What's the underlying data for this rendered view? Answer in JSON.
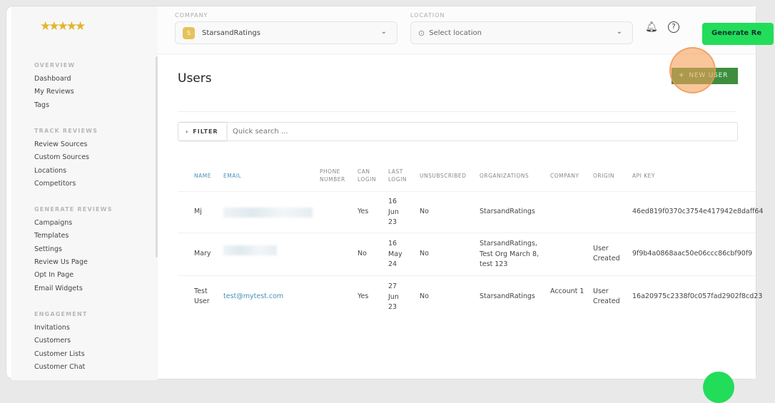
{
  "logo_alt": "StarsandRatings stars",
  "sidebar": {
    "sections": [
      {
        "title": "OVERVIEW",
        "items": [
          "Dashboard",
          "My Reviews",
          "Tags"
        ]
      },
      {
        "title": "TRACK REVIEWS",
        "items": [
          "Review Sources",
          "Custom Sources",
          "Locations",
          "Competitors"
        ]
      },
      {
        "title": "GENERATE REVIEWS",
        "items": [
          "Campaigns",
          "Templates",
          "Settings",
          "Review Us Page",
          "Opt In Page",
          "Email Widgets"
        ]
      },
      {
        "title": "ENGAGEMENT",
        "items": [
          "Invitations",
          "Customers",
          "Customer Lists",
          "Customer Chat"
        ]
      }
    ]
  },
  "header": {
    "company_label": "COMPANY",
    "company_initial": "S",
    "company_value": "StarsandRatings",
    "location_label": "LOCATION",
    "location_placeholder": "Select location",
    "generate_label": "Generate Re"
  },
  "page": {
    "title": "Users",
    "new_user": "NEW USER",
    "filter": "FILTER",
    "search_placeholder": "Quick search ..."
  },
  "table": {
    "columns": [
      "NAME",
      "EMAIL",
      "PHONE NUMBER",
      "CAN LOGIN",
      "LAST LOGIN",
      "UNSUBSCRIBED",
      "ORGANIZATIONS",
      "COMPANY",
      "ORIGIN",
      "API KEY"
    ],
    "rows": [
      {
        "name": "Mj",
        "email": "",
        "phone": "",
        "can_login": "Yes",
        "last_login": "16 Jun 23",
        "unsubscribed": "No",
        "organizations": "StarsandRatings",
        "company": "",
        "origin": "",
        "api_key": "46ed819f0370c3754e417942e8daff64"
      },
      {
        "name": "Mary",
        "email": "",
        "phone": "",
        "can_login": "No",
        "last_login": "16 May 24",
        "unsubscribed": "No",
        "organizations": "StarsandRatings, Test Org March 8, test 123",
        "company": "",
        "origin": "User Created",
        "api_key": "9f9b4a0868aac50e06ccc86cbf90f9"
      },
      {
        "name": "Test User",
        "email": "test@mytest.com",
        "phone": "",
        "can_login": "Yes",
        "last_login": "27 Jun 23",
        "unsubscribed": "No",
        "organizations": "StarsandRatings",
        "company": "Account 1",
        "origin": "User Created",
        "api_key": "16a20975c2338f0c057fad2902f8cd23"
      }
    ]
  },
  "colors": {
    "accent_green": "#22dd5a",
    "new_user_green": "#3e8e3e",
    "link_blue": "#4a90b8"
  }
}
